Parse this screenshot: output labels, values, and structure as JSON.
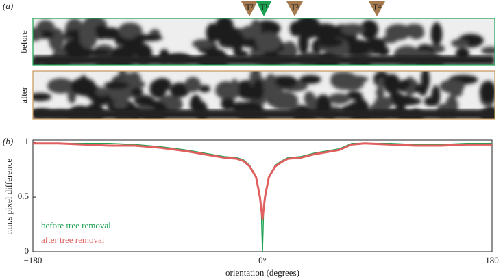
{
  "panel_a": {
    "label": "(a)",
    "rows": [
      "before",
      "after"
    ],
    "markers": [
      "T²",
      "T¹",
      "T³",
      "T⁴"
    ]
  },
  "chart_data": {
    "type": "line",
    "panel_label": "(b)",
    "x_label": "orientation (degrees)",
    "y_label": "r.m.s pixel difference",
    "x": [
      -180,
      -160,
      -140,
      -120,
      -100,
      -80,
      -60,
      -40,
      -30,
      -20,
      -15,
      -10,
      -5,
      -2,
      -1,
      0,
      1,
      2,
      5,
      10,
      15,
      20,
      30,
      40,
      60,
      70,
      80,
      100,
      120,
      140,
      160,
      180
    ],
    "series": [
      {
        "name": "before tree removal",
        "color": "#1aa050",
        "values": [
          0.99,
          0.99,
          0.99,
          0.99,
          0.98,
          0.96,
          0.93,
          0.89,
          0.87,
          0.86,
          0.84,
          0.79,
          0.69,
          0.52,
          0.42,
          0,
          0.42,
          0.52,
          0.69,
          0.79,
          0.83,
          0.86,
          0.87,
          0.9,
          0.94,
          0.99,
          0.99,
          0.99,
          0.98,
          0.98,
          0.99,
          0.99
        ]
      },
      {
        "name": "after tree removal",
        "color": "#e06060",
        "values": [
          0.99,
          0.99,
          0.98,
          0.97,
          0.97,
          0.95,
          0.92,
          0.88,
          0.86,
          0.85,
          0.83,
          0.78,
          0.68,
          0.5,
          0.4,
          0.3,
          0.4,
          0.5,
          0.68,
          0.78,
          0.82,
          0.85,
          0.86,
          0.89,
          0.93,
          0.98,
          0.99,
          0.98,
          0.97,
          0.97,
          0.98,
          0.98
        ]
      }
    ],
    "xlim": [
      -180,
      180
    ],
    "ylim": [
      0,
      1.02
    ],
    "xticks": [
      {
        "value": -180,
        "label": "−180"
      },
      {
        "value": 0,
        "label": "0°"
      },
      180
    ],
    "yticks": [
      0,
      0.5,
      1
    ],
    "legend": "lower left"
  }
}
